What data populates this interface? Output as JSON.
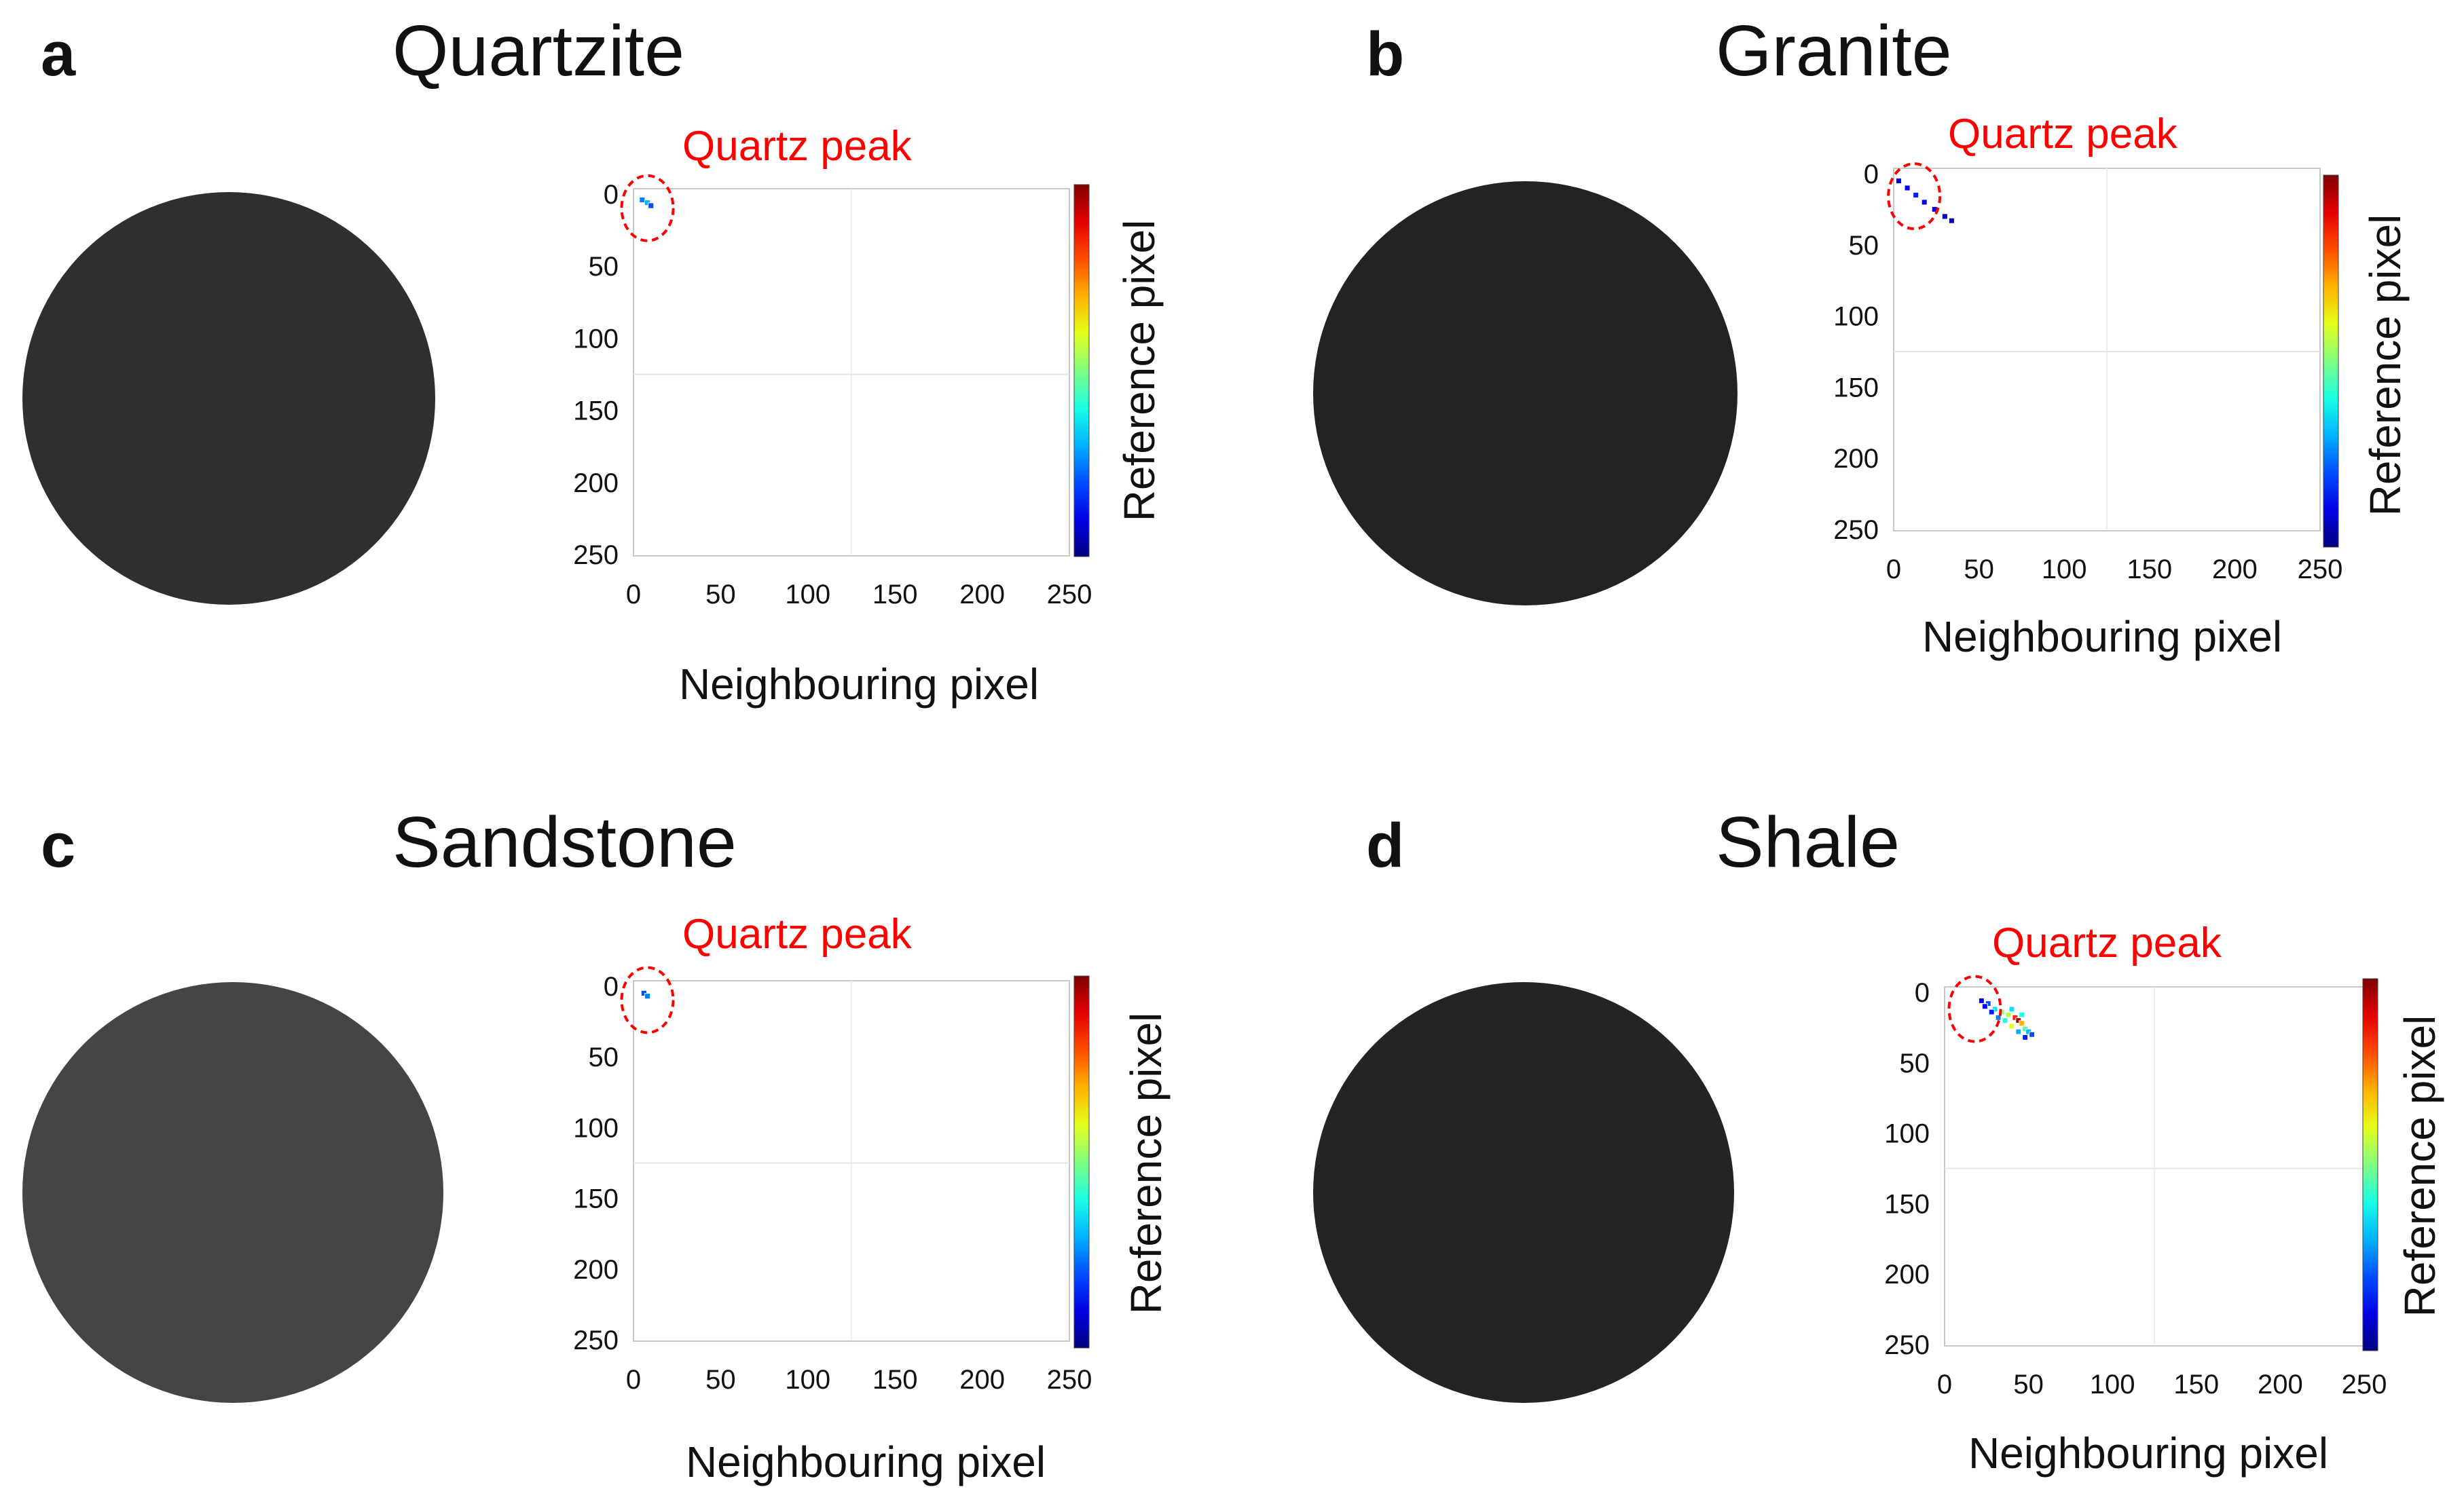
{
  "figure": {
    "panels": [
      {
        "letter": "a",
        "title": "Quartzite",
        "peak_label": "Quartz peak",
        "xlabel": "Neighbouring pixel",
        "ylabel": "Reference pixel",
        "rock_color": "#2f2f31"
      },
      {
        "letter": "b",
        "title": "Granite",
        "peak_label": "Quartz peak",
        "xlabel": "Neighbouring pixel",
        "ylabel": "Reference pixel",
        "rock_color": "#232325"
      },
      {
        "letter": "c",
        "title": "Sandstone",
        "peak_label": "Quartz peak",
        "xlabel": "Neighbouring pixel",
        "ylabel": "Reference pixel",
        "rock_color": "#454547"
      },
      {
        "letter": "d",
        "title": "Shale",
        "peak_label": "Quartz peak",
        "xlabel": "Neighbouring pixel",
        "ylabel": "Reference pixel",
        "rock_color": "#242426"
      }
    ]
  },
  "chart_data": [
    {
      "type": "heatmap",
      "title": "Quartzite",
      "xlabel": "Neighbouring pixel",
      "ylabel": "Reference pixel",
      "xlim": [
        0,
        250
      ],
      "ylim": [
        0,
        250
      ],
      "xticks": [
        0,
        50,
        100,
        150,
        200,
        250
      ],
      "yticks": [
        0,
        50,
        100,
        150,
        200,
        250
      ],
      "annotation": "Quartz peak",
      "peak_center": [
        8,
        6
      ],
      "points": [
        [
          5,
          4,
          0.25
        ],
        [
          8,
          6,
          0.3
        ],
        [
          10,
          8,
          0.2
        ]
      ]
    },
    {
      "type": "heatmap",
      "title": "Granite",
      "xlabel": "Neighbouring pixel",
      "ylabel": "Reference pixel",
      "xlim": [
        0,
        250
      ],
      "ylim": [
        0,
        250
      ],
      "xticks": [
        0,
        50,
        100,
        150,
        200,
        250
      ],
      "yticks": [
        0,
        50,
        100,
        150,
        200,
        250
      ],
      "annotation": "Quartz peak",
      "peak_center": [
        12,
        12
      ],
      "points": [
        [
          3,
          5,
          0.1
        ],
        [
          8,
          10,
          0.12
        ],
        [
          13,
          15,
          0.15
        ],
        [
          18,
          20,
          0.12
        ],
        [
          24,
          25,
          0.1
        ],
        [
          30,
          30,
          0.08
        ],
        [
          34,
          33,
          0.06
        ]
      ]
    },
    {
      "type": "heatmap",
      "title": "Sandstone",
      "xlabel": "Neighbouring pixel",
      "ylabel": "Reference pixel",
      "xlim": [
        0,
        250
      ],
      "ylim": [
        0,
        250
      ],
      "xticks": [
        0,
        50,
        100,
        150,
        200,
        250
      ],
      "yticks": [
        0,
        50,
        100,
        150,
        200,
        250
      ],
      "annotation": "Quartz peak",
      "peak_center": [
        8,
        6
      ],
      "points": [
        [
          6,
          5,
          0.2
        ],
        [
          8,
          7,
          0.25
        ]
      ]
    },
    {
      "type": "heatmap",
      "title": "Shale",
      "xlabel": "Neighbouring pixel",
      "ylabel": "Reference pixel",
      "xlim": [
        0,
        250
      ],
      "ylim": [
        0,
        250
      ],
      "xticks": [
        0,
        50,
        100,
        150,
        200,
        250
      ],
      "yticks": [
        0,
        50,
        100,
        150,
        200,
        250
      ],
      "annotation": "Quartz peak",
      "peak_center": [
        18,
        8
      ],
      "points": [
        [
          22,
          6,
          0.1
        ],
        [
          26,
          8,
          0.2
        ],
        [
          30,
          12,
          0.35
        ],
        [
          34,
          14,
          0.5
        ],
        [
          38,
          16,
          0.55
        ],
        [
          42,
          18,
          0.85
        ],
        [
          44,
          20,
          0.95
        ],
        [
          46,
          22,
          0.7
        ],
        [
          48,
          26,
          0.45
        ],
        [
          50,
          28,
          0.3
        ],
        [
          52,
          30,
          0.2
        ],
        [
          40,
          24,
          0.6
        ],
        [
          36,
          20,
          0.4
        ],
        [
          32,
          18,
          0.25
        ],
        [
          28,
          14,
          0.15
        ],
        [
          44,
          28,
          0.3
        ],
        [
          48,
          32,
          0.15
        ],
        [
          24,
          10,
          0.12
        ],
        [
          40,
          12,
          0.35
        ],
        [
          46,
          16,
          0.4
        ]
      ]
    }
  ]
}
